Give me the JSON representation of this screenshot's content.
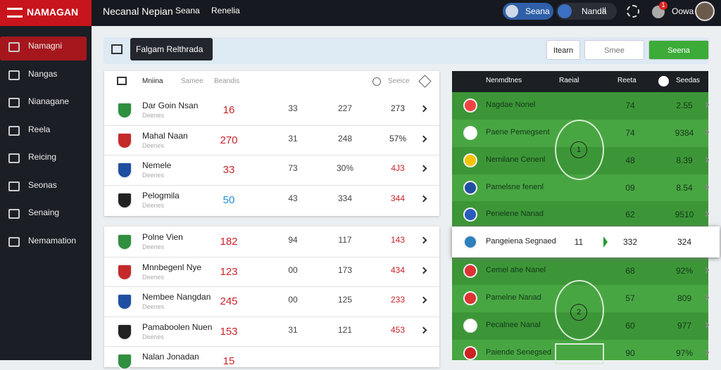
{
  "header": {
    "logo": "NAMAGAN",
    "nav": [
      "Necanal Nepian",
      "Seana",
      "Renelia"
    ],
    "user_pill": "Seana",
    "team_pill": "Nanda",
    "team_badge": "II",
    "notifications": "1",
    "user": "Oowa"
  },
  "sidebar": [
    "Namagni",
    "Nangas",
    "Nianagane",
    "Reela",
    "Reicing",
    "Seonas",
    "Senaing",
    "Nemamation"
  ],
  "toolbar": {
    "title": "Falgam Relthrada",
    "buttons": [
      "Itearn",
      "Smee",
      "Seena"
    ]
  },
  "left_table": {
    "columns": [
      "Mniina",
      "Samee",
      "Beandis",
      "Seeice"
    ],
    "groups": [
      [
        {
          "name": "Dar Goin Nsan",
          "sub": "Deenes",
          "values": [
            "16",
            "33",
            "227",
            "273"
          ],
          "tones": [
            "red",
            "gray",
            "gray",
            "dark"
          ]
        },
        {
          "name": "Mahal Naan",
          "sub": "Deenes",
          "values": [
            "270",
            "31",
            "248",
            "57%"
          ],
          "tones": [
            "red",
            "gray",
            "gray",
            "dark"
          ]
        },
        {
          "name": "Nemele",
          "sub": "Deenes",
          "values": [
            "33",
            "73",
            "30%",
            "4J3"
          ],
          "tones": [
            "red",
            "gray",
            "gray",
            "red"
          ]
        },
        {
          "name": "Pelogmila",
          "sub": "Deenes",
          "values": [
            "50",
            "43",
            "334",
            "344"
          ],
          "tones": [
            "blue",
            "gray",
            "gray",
            "red"
          ]
        }
      ],
      [
        {
          "name": "Polne Vien",
          "sub": "Deenes",
          "values": [
            "182",
            "94",
            "117",
            "143"
          ],
          "tones": [
            "red",
            "gray",
            "gray",
            "red"
          ]
        },
        {
          "name": "Mnnbegenl Nye",
          "sub": "Deenes",
          "values": [
            "123",
            "00",
            "173",
            "434"
          ],
          "tones": [
            "red",
            "gray",
            "gray",
            "red"
          ]
        },
        {
          "name": "Nembee Nangdan",
          "sub": "Deenes",
          "values": [
            "245",
            "00",
            "125",
            "233"
          ],
          "tones": [
            "red",
            "gray",
            "gray",
            "red"
          ]
        },
        {
          "name": "Pamaboolen Nuen",
          "sub": "Deenes",
          "values": [
            "153",
            "31",
            "121",
            "453"
          ],
          "tones": [
            "red",
            "gray",
            "gray",
            "red"
          ]
        },
        {
          "name": "Nalan Jonadan",
          "values": [
            "15"
          ],
          "tones": [
            "red"
          ]
        }
      ]
    ]
  },
  "right_table": {
    "columns": [
      "Nenmdtnes",
      "Raeial",
      "Reeta",
      "Seedas"
    ],
    "center": "1",
    "lower": "2",
    "highlight": 5,
    "rows": [
      {
        "name": "Nagdae Nonel",
        "values": [
          "74",
          "2.55"
        ]
      },
      {
        "name": "Paene Pemegsent",
        "values": [
          "74",
          "9384"
        ]
      },
      {
        "name": "Nemilane Cenenl",
        "values": [
          "48",
          "8.39"
        ]
      },
      {
        "name": "Pamelsne fenenl",
        "values": [
          "09",
          "8.54"
        ]
      },
      {
        "name": "Penelene Nanad",
        "values": [
          "62",
          "9510"
        ]
      },
      {
        "name": "Pangeiena Segnaed",
        "values": [
          "11",
          "332",
          "324"
        ]
      },
      {
        "name": "Cemel ahe Nanel",
        "values": [
          "68",
          "92%"
        ]
      },
      {
        "name": "Pamelne Nanad",
        "values": [
          "57",
          "809"
        ]
      },
      {
        "name": "Pecalnee Nanal",
        "values": [
          "60",
          "977"
        ]
      },
      {
        "name": "Paiende Senegsed",
        "values": [
          "90",
          "97%"
        ]
      }
    ]
  }
}
